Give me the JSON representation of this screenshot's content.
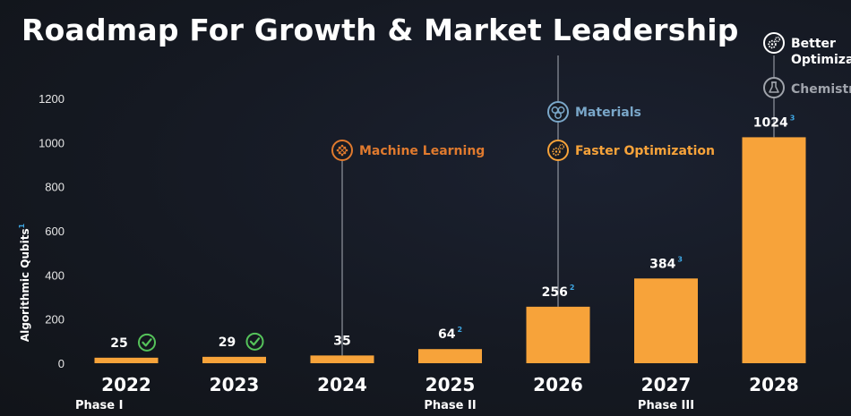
{
  "title": "Roadmap For Growth & Market Leadership",
  "colors": {
    "bar": "#f7a33a",
    "check": "#55c25a",
    "ml": "#e07a2e",
    "materials": "#7aa7c9",
    "faster": "#f7a33a",
    "better": "#ffffff",
    "chemistry": "#a0a4ac",
    "sup": "#3fa9e6"
  },
  "chart_data": {
    "type": "bar",
    "title": "Roadmap For Growth & Market Leadership",
    "xlabel": "",
    "ylabel": "Algorithmic Qubits",
    "ylabel_sup": "1",
    "ylim": [
      0,
      1200
    ],
    "yticks": [
      0,
      200,
      400,
      600,
      800,
      1000,
      1200
    ],
    "grid": false,
    "categories": [
      "2022",
      "2023",
      "2024",
      "2025",
      "2026",
      "2027",
      "2028"
    ],
    "values": [
      25,
      29,
      35,
      64,
      256,
      384,
      1024
    ],
    "value_labels": [
      "25",
      "29",
      "35",
      "64",
      "256",
      "384",
      "1024"
    ],
    "value_sups": [
      "",
      "",
      "",
      "2",
      "2",
      "3",
      "3"
    ],
    "achieved": [
      true,
      true,
      false,
      false,
      false,
      false,
      false
    ],
    "phases": [
      {
        "label": "Phase I",
        "under": "2022"
      },
      {
        "label": "Phase II",
        "under": "2025"
      },
      {
        "label": "Phase III",
        "under": "2027"
      }
    ],
    "annotations": [
      {
        "year": "2024",
        "items": [
          {
            "label": "Machine Learning",
            "icon": "neural-net-icon",
            "color_key": "ml"
          }
        ]
      },
      {
        "year": "2026",
        "items": [
          {
            "label": "Materials",
            "icon": "molecule-icon",
            "color_key": "materials"
          },
          {
            "label": "Faster Optimization",
            "icon": "gears-icon",
            "color_key": "faster"
          }
        ]
      },
      {
        "year": "2028",
        "items": [
          {
            "label": "Better Optimization",
            "icon": "gears-icon",
            "color_key": "better"
          },
          {
            "label": "Chemistry",
            "icon": "flask-icon",
            "color_key": "chemistry"
          }
        ]
      }
    ]
  }
}
